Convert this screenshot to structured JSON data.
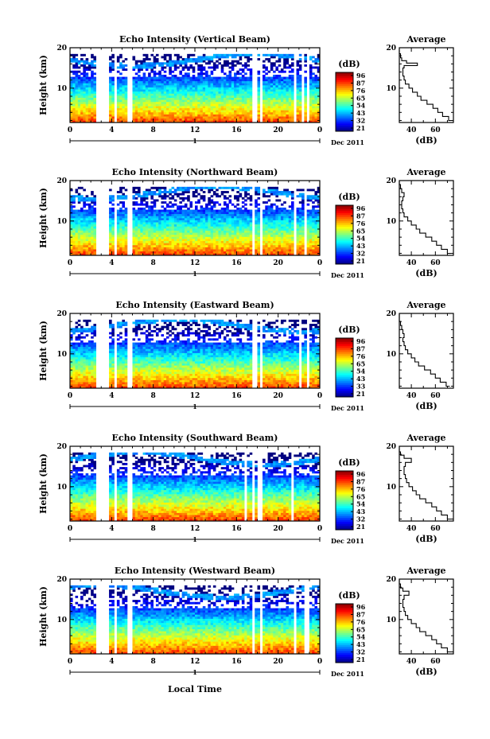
{
  "figure": {
    "xlabel": "Local Time",
    "date_label": "Dec 2011",
    "day_label": "1",
    "colorbar_unit": "(dB)",
    "avg_title": "Average",
    "avg_xlabel": "(dB)"
  },
  "chart_data": [
    {
      "type": "heatmap",
      "title": "Echo Intensity (Vertical Beam)",
      "ylabel": "Height (km)",
      "x_ticks": [
        "0",
        "4",
        "8",
        "12",
        "16",
        "20",
        "0"
      ],
      "xlim": [
        0,
        24
      ],
      "y_ticks": [
        "10",
        "20"
      ],
      "ylim": [
        1.5,
        20
      ],
      "colorbar_ticks": [
        "96",
        "87",
        "76",
        "65",
        "54",
        "43",
        "32",
        "21"
      ],
      "colorbar_range": [
        21,
        96
      ],
      "gaps": [
        [
          2.4,
          3.8
        ],
        [
          4.2,
          4.5
        ],
        [
          4.9,
          5.1
        ],
        [
          5.4,
          6.0
        ],
        [
          17.6,
          17.9
        ],
        [
          18.3,
          18.6
        ],
        [
          21.4,
          21.7
        ],
        [
          22.2,
          22.4
        ],
        [
          22.8,
          23.1
        ]
      ],
      "profile": {
        "type": "line",
        "title": "Average",
        "xlabel": "(dB)",
        "x_ticks": [
          "40",
          "60"
        ],
        "xlim": [
          30,
          75
        ],
        "y_ticks": [
          "10",
          "20"
        ],
        "ylim": [
          1.5,
          20
        ],
        "points": [
          [
            74,
            2
          ],
          [
            71,
            3
          ],
          [
            66,
            4
          ],
          [
            62,
            5
          ],
          [
            58,
            6
          ],
          [
            53,
            7
          ],
          [
            48,
            8
          ],
          [
            45,
            9
          ],
          [
            41,
            10
          ],
          [
            38,
            11
          ],
          [
            35,
            12
          ],
          [
            34,
            13
          ],
          [
            33,
            14
          ],
          [
            33,
            15
          ],
          [
            34,
            15.6
          ],
          [
            45,
            16.2
          ],
          [
            36,
            16.8
          ],
          [
            32,
            17.5
          ],
          [
            31,
            18.5
          ],
          [
            30,
            19.5
          ]
        ]
      }
    },
    {
      "type": "heatmap",
      "title": "Echo Intensity (Northward Beam)",
      "ylabel": "Height (km)",
      "x_ticks": [
        "0",
        "4",
        "8",
        "12",
        "16",
        "20",
        "0"
      ],
      "xlim": [
        0,
        24
      ],
      "y_ticks": [
        "10",
        "20"
      ],
      "ylim": [
        1.5,
        20
      ],
      "colorbar_ticks": [
        "96",
        "87",
        "76",
        "65",
        "54",
        "43",
        "32",
        "21"
      ],
      "colorbar_range": [
        21,
        96
      ],
      "gaps": [
        [
          2.4,
          3.8
        ],
        [
          4.2,
          4.5
        ],
        [
          4.9,
          5.1
        ],
        [
          5.4,
          6.0
        ],
        [
          17.5,
          17.8
        ],
        [
          18.2,
          18.5
        ],
        [
          21.5,
          21.8
        ],
        [
          22.5,
          22.7
        ]
      ],
      "profile": {
        "type": "line",
        "title": "Average",
        "xlabel": "(dB)",
        "x_ticks": [
          "40",
          "60"
        ],
        "xlim": [
          30,
          75
        ],
        "y_ticks": [
          "10",
          "20"
        ],
        "ylim": [
          1.5,
          20
        ],
        "points": [
          [
            73,
            2
          ],
          [
            70,
            3
          ],
          [
            65,
            4
          ],
          [
            61,
            5
          ],
          [
            57,
            6
          ],
          [
            52,
            7
          ],
          [
            47,
            8
          ],
          [
            44,
            9
          ],
          [
            40,
            10
          ],
          [
            37,
            11
          ],
          [
            34,
            12
          ],
          [
            33,
            13
          ],
          [
            32,
            14
          ],
          [
            32,
            15
          ],
          [
            33,
            16
          ],
          [
            34,
            17
          ],
          [
            32,
            18
          ],
          [
            31,
            19
          ],
          [
            30,
            19.8
          ]
        ]
      }
    },
    {
      "type": "heatmap",
      "title": "Echo Intensity (Eastward Beam)",
      "ylabel": "Height (km)",
      "x_ticks": [
        "0",
        "4",
        "8",
        "12",
        "16",
        "20",
        "0"
      ],
      "xlim": [
        0,
        24
      ],
      "y_ticks": [
        "10",
        "20"
      ],
      "ylim": [
        1.5,
        20
      ],
      "colorbar_ticks": [
        "96",
        "87",
        "76",
        "65",
        "54",
        "43",
        "33",
        "21"
      ],
      "colorbar_range": [
        21,
        96
      ],
      "gaps": [
        [
          2.4,
          3.8
        ],
        [
          4.2,
          4.5
        ],
        [
          4.9,
          5.1
        ],
        [
          5.4,
          6.0
        ],
        [
          17.6,
          17.9
        ],
        [
          18.3,
          18.6
        ],
        [
          22.0,
          22.3
        ],
        [
          22.8,
          23.0
        ]
      ],
      "profile": {
        "type": "line",
        "title": "Average",
        "xlabel": "(dB)",
        "x_ticks": [
          "40",
          "60"
        ],
        "xlim": [
          30,
          75
        ],
        "y_ticks": [
          "10",
          "20"
        ],
        "ylim": [
          1.5,
          20
        ],
        "points": [
          [
            72,
            2
          ],
          [
            69,
            3
          ],
          [
            64,
            4
          ],
          [
            60,
            5
          ],
          [
            56,
            6
          ],
          [
            51,
            7
          ],
          [
            46,
            8
          ],
          [
            43,
            9
          ],
          [
            40,
            10
          ],
          [
            37,
            11
          ],
          [
            35,
            12
          ],
          [
            34,
            13
          ],
          [
            33,
            14
          ],
          [
            34,
            15
          ],
          [
            33,
            16
          ],
          [
            32,
            17
          ],
          [
            31,
            18
          ],
          [
            30,
            19
          ],
          [
            30,
            19.8
          ]
        ]
      }
    },
    {
      "type": "heatmap",
      "title": "Echo Intensity (Southward Beam)",
      "ylabel": "Height (km)",
      "x_ticks": [
        "0",
        "4",
        "8",
        "12",
        "16",
        "20",
        "0"
      ],
      "xlim": [
        0,
        24
      ],
      "y_ticks": [
        "10",
        "20"
      ],
      "ylim": [
        1.5,
        20
      ],
      "colorbar_ticks": [
        "96",
        "87",
        "76",
        "65",
        "54",
        "43",
        "32",
        "21"
      ],
      "colorbar_range": [
        21,
        96
      ],
      "gaps": [
        [
          2.4,
          3.8
        ],
        [
          4.2,
          4.5
        ],
        [
          4.9,
          5.1
        ],
        [
          5.4,
          6.0
        ],
        [
          16.8,
          17.0
        ],
        [
          17.4,
          17.7
        ],
        [
          18.1,
          18.4
        ],
        [
          21.2,
          21.5
        ],
        [
          22.4,
          22.6
        ]
      ],
      "profile": {
        "type": "line",
        "title": "Average",
        "xlabel": "(dB)",
        "x_ticks": [
          "40",
          "60"
        ],
        "xlim": [
          30,
          75
        ],
        "y_ticks": [
          "10",
          "20"
        ],
        "ylim": [
          1.5,
          20
        ],
        "points": [
          [
            73,
            2
          ],
          [
            70,
            3
          ],
          [
            65,
            4
          ],
          [
            61,
            5
          ],
          [
            57,
            6
          ],
          [
            52,
            7
          ],
          [
            47,
            8
          ],
          [
            44,
            9
          ],
          [
            41,
            10
          ],
          [
            38,
            11
          ],
          [
            36,
            12
          ],
          [
            35,
            13
          ],
          [
            34,
            14
          ],
          [
            34,
            15
          ],
          [
            35,
            16
          ],
          [
            40,
            17
          ],
          [
            34,
            17.8
          ],
          [
            31,
            18.6
          ],
          [
            30,
            19.5
          ]
        ]
      }
    },
    {
      "type": "heatmap",
      "title": "Echo Intensity (Westward Beam)",
      "ylabel": "Height (km)",
      "x_ticks": [
        "0",
        "4",
        "8",
        "12",
        "16",
        "20",
        "0"
      ],
      "xlim": [
        0,
        24
      ],
      "y_ticks": [
        "10",
        "20"
      ],
      "ylim": [
        1.5,
        20
      ],
      "colorbar_ticks": [
        "96",
        "87",
        "76",
        "65",
        "54",
        "43",
        "32",
        "21"
      ],
      "colorbar_range": [
        21,
        96
      ],
      "gaps": [
        [
          2.4,
          3.8
        ],
        [
          4.2,
          4.5
        ],
        [
          4.9,
          5.1
        ],
        [
          5.4,
          6.0
        ],
        [
          17.4,
          17.7
        ],
        [
          18.2,
          18.5
        ],
        [
          21.4,
          21.7
        ],
        [
          22.6,
          22.9
        ]
      ],
      "profile": {
        "type": "line",
        "title": "Average",
        "xlabel": "(dB)",
        "x_ticks": [
          "40",
          "60"
        ],
        "xlim": [
          30,
          75
        ],
        "y_ticks": [
          "10",
          "20"
        ],
        "ylim": [
          1.5,
          20
        ],
        "points": [
          [
            73,
            2
          ],
          [
            70,
            3
          ],
          [
            65,
            4
          ],
          [
            61,
            5
          ],
          [
            57,
            6
          ],
          [
            52,
            7
          ],
          [
            47,
            8
          ],
          [
            44,
            9
          ],
          [
            40,
            10
          ],
          [
            37,
            11
          ],
          [
            35,
            12
          ],
          [
            34,
            13
          ],
          [
            33,
            14
          ],
          [
            33,
            15
          ],
          [
            34,
            16
          ],
          [
            38,
            17
          ],
          [
            33,
            17.8
          ],
          [
            31,
            18.8
          ],
          [
            30,
            19.8
          ]
        ]
      }
    }
  ]
}
